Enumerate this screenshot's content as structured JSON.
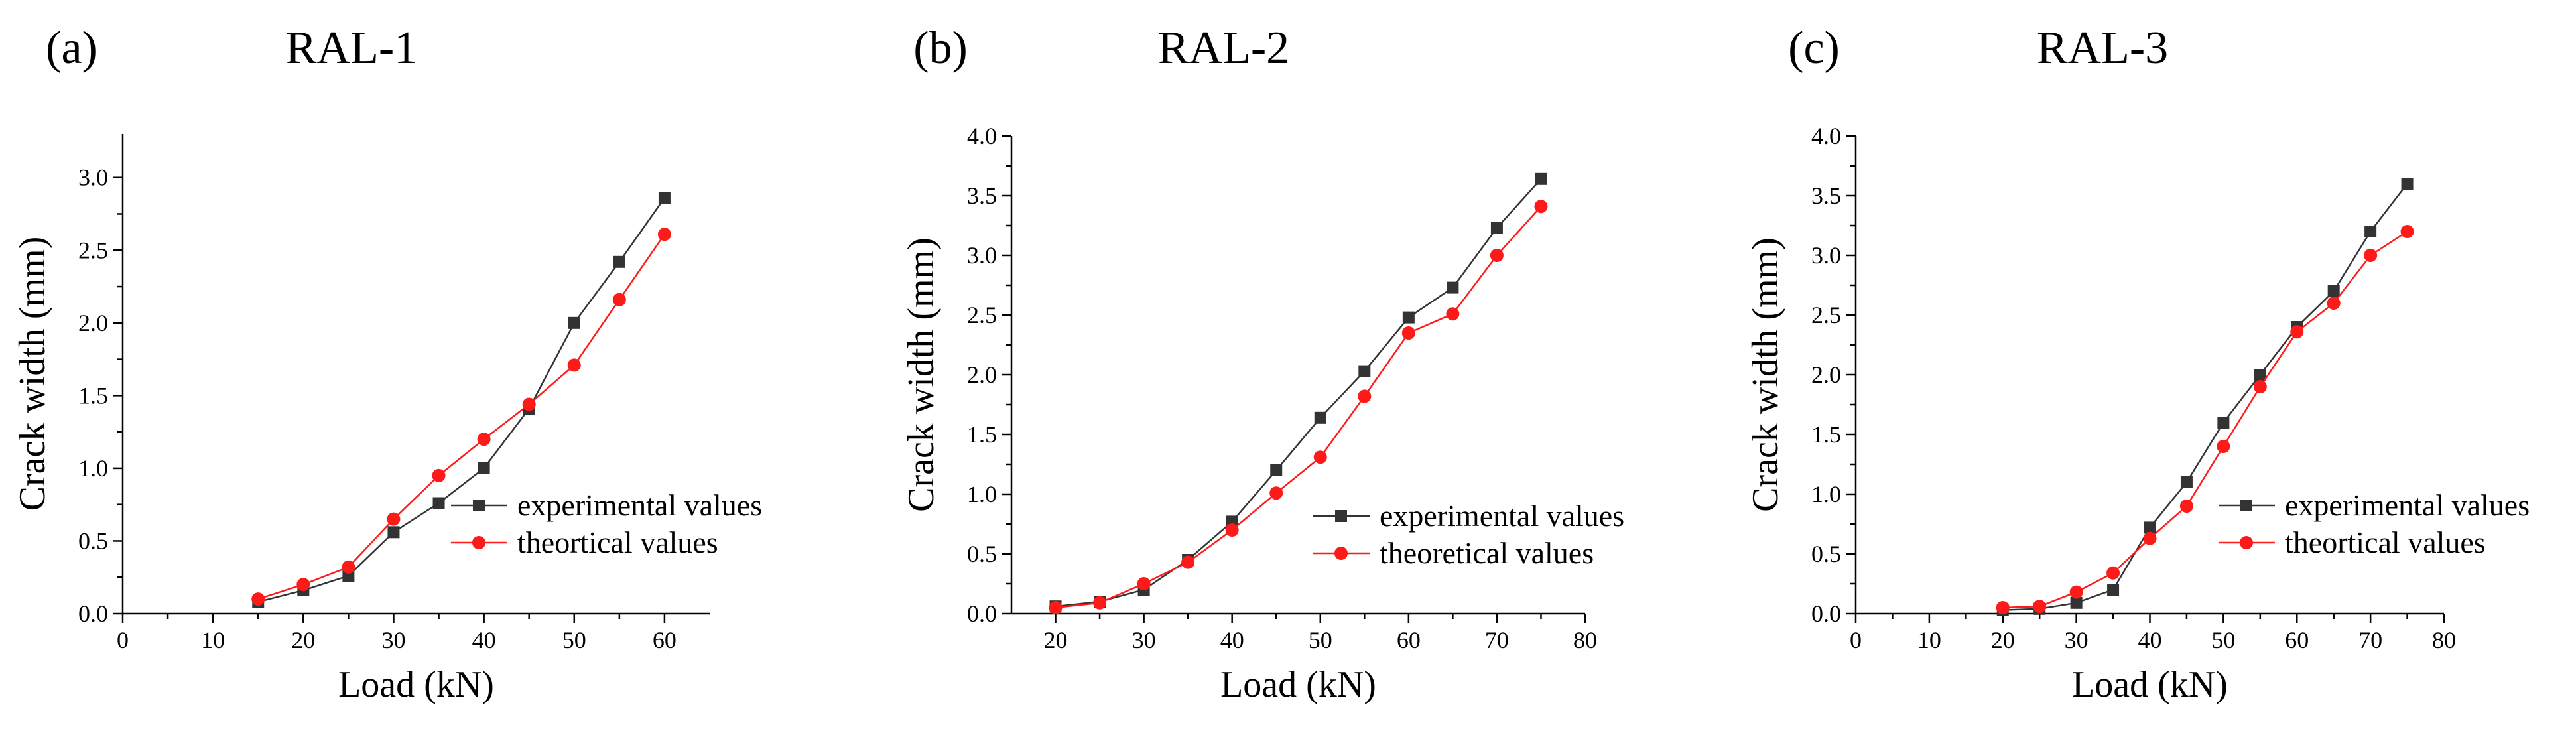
{
  "chart_data": [
    {
      "type": "line",
      "panel_label": "(a)",
      "title": "RAL-1",
      "xlabel": "Load (kN)",
      "ylabel": "Crack width (mm)",
      "xlim": [
        0,
        65
      ],
      "ylim": [
        0,
        3.3
      ],
      "xticks": [
        0,
        10,
        20,
        30,
        40,
        50,
        60
      ],
      "yticks": [
        0.0,
        0.5,
        1.0,
        1.5,
        2.0,
        2.5,
        3.0
      ],
      "xtick_labels": [
        "0",
        "10",
        "20",
        "30",
        "40",
        "50",
        "60"
      ],
      "ytick_labels": [
        "0.0",
        "0.5",
        "1.0",
        "1.5",
        "2.0",
        "2.5",
        "3.0"
      ],
      "legend_position": "lower-right",
      "series": [
        {
          "name": "experimental values",
          "color": "#333333",
          "marker": "square",
          "x": [
            15,
            20,
            25,
            30,
            35,
            40,
            45,
            50,
            55,
            60
          ],
          "values": [
            0.08,
            0.16,
            0.26,
            0.56,
            0.76,
            1.0,
            1.41,
            2.0,
            2.42,
            2.86
          ]
        },
        {
          "name": "theortical values",
          "color": "#ff1a1a",
          "marker": "circle",
          "x": [
            15,
            20,
            25,
            30,
            35,
            40,
            45,
            50,
            55,
            60
          ],
          "values": [
            0.1,
            0.2,
            0.32,
            0.65,
            0.95,
            1.2,
            1.44,
            1.71,
            2.16,
            2.61
          ]
        }
      ]
    },
    {
      "type": "line",
      "panel_label": "(b)",
      "title": "RAL-2",
      "xlabel": "Load (kN)",
      "ylabel": "Crack width (mm)",
      "xlim": [
        15,
        80
      ],
      "ylim": [
        0,
        4.0
      ],
      "xticks": [
        20,
        30,
        40,
        50,
        60,
        70,
        80
      ],
      "yticks": [
        0.0,
        0.5,
        1.0,
        1.5,
        2.0,
        2.5,
        3.0,
        3.5,
        4.0
      ],
      "xtick_labels": [
        "20",
        "30",
        "40",
        "50",
        "60",
        "70",
        "80"
      ],
      "ytick_labels": [
        "0.0",
        "0.5",
        "1.0",
        "1.5",
        "2.0",
        "2.5",
        "3.0",
        "3.5",
        "4.0"
      ],
      "legend_position": "lower-right",
      "series": [
        {
          "name": "experimental values",
          "color": "#333333",
          "marker": "square",
          "x": [
            20,
            25,
            30,
            35,
            40,
            45,
            50,
            55,
            60,
            65,
            70,
            75
          ],
          "values": [
            0.06,
            0.1,
            0.2,
            0.45,
            0.77,
            1.2,
            1.64,
            2.03,
            2.48,
            2.73,
            3.23,
            3.64
          ]
        },
        {
          "name": "theoretical values",
          "color": "#ff1a1a",
          "marker": "circle",
          "x": [
            20,
            25,
            30,
            35,
            40,
            45,
            50,
            55,
            60,
            65,
            70,
            75
          ],
          "values": [
            0.05,
            0.09,
            0.25,
            0.43,
            0.7,
            1.01,
            1.31,
            1.82,
            2.35,
            2.51,
            3.0,
            3.41
          ]
        }
      ]
    },
    {
      "type": "line",
      "panel_label": "(c)",
      "title": "RAL-3",
      "xlabel": "Load (kN)",
      "ylabel": "Crack width (mm)",
      "xlim": [
        0,
        80
      ],
      "ylim": [
        0,
        4.0
      ],
      "xticks": [
        0,
        10,
        20,
        30,
        40,
        50,
        60,
        70,
        80
      ],
      "yticks": [
        0.0,
        0.5,
        1.0,
        1.5,
        2.0,
        2.5,
        3.0,
        3.5,
        4.0
      ],
      "xtick_labels": [
        "0",
        "10",
        "20",
        "30",
        "40",
        "50",
        "60",
        "70",
        "80"
      ],
      "ytick_labels": [
        "0.0",
        "0.5",
        "1.0",
        "1.5",
        "2.0",
        "2.5",
        "3.0",
        "3.5",
        "4.0"
      ],
      "legend_position": "lower-right",
      "series": [
        {
          "name": "experimental values",
          "color": "#333333",
          "marker": "square",
          "x": [
            20,
            25,
            30,
            35,
            40,
            45,
            50,
            55,
            60,
            65,
            70,
            75
          ],
          "values": [
            0.03,
            0.04,
            0.09,
            0.2,
            0.72,
            1.1,
            1.6,
            2.0,
            2.4,
            2.7,
            3.2,
            3.6
          ]
        },
        {
          "name": "theortical values",
          "color": "#ff1a1a",
          "marker": "circle",
          "x": [
            20,
            25,
            30,
            35,
            40,
            45,
            50,
            55,
            60,
            65,
            70,
            75
          ],
          "values": [
            0.05,
            0.06,
            0.18,
            0.34,
            0.63,
            0.9,
            1.4,
            1.9,
            2.36,
            2.6,
            3.0,
            3.2
          ]
        }
      ]
    }
  ]
}
